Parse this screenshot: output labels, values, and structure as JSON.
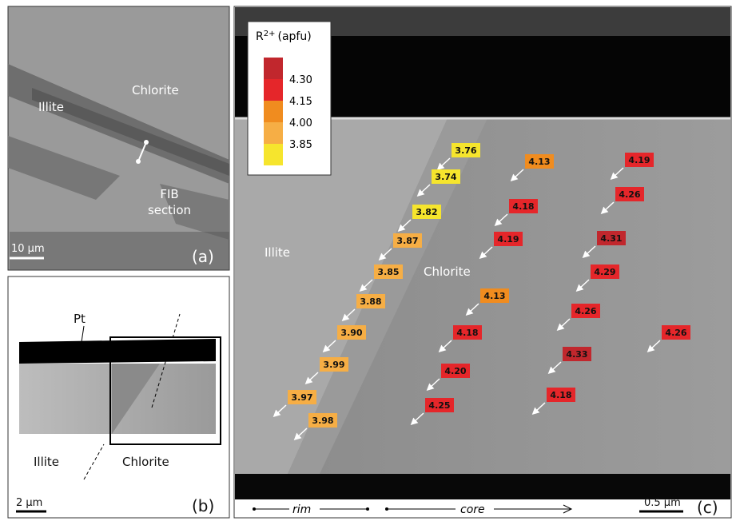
{
  "panel_a": {
    "illite": "Illite",
    "chlorite": "Chlorite",
    "fib": [
      "FIB",
      "section"
    ],
    "scale": "10 µm",
    "panel_label": "(a)"
  },
  "panel_b": {
    "pt": "Pt",
    "illite": "Illite",
    "chlorite": "Chlorite",
    "scale": "2 µm",
    "panel_label": "(b)"
  },
  "panel_c": {
    "legend": {
      "title": "R",
      "title_sup": "2+",
      "title_unit": "(apfu)",
      "ticks": [
        "4.30",
        "4.15",
        "4.00",
        "3.85"
      ],
      "colors": [
        "#c1272d",
        "#e5262a",
        "#f08c1f",
        "#f6ae45",
        "#f6e52d"
      ]
    },
    "illite": "Illite",
    "chlorite": "Chlorite",
    "rim": "rim",
    "core": "core",
    "scale": "0.5 µm",
    "panel_label": "(c)",
    "points": [
      "3.76",
      "3.74",
      "3.82",
      "3.87",
      "3.85",
      "3.88",
      "3.90",
      "3.99",
      "3.97",
      "3.98",
      "4.13",
      "4.18",
      "4.19",
      "4.13",
      "4.18",
      "4.20",
      "4.25",
      "4.19",
      "4.26",
      "4.31",
      "4.29",
      "4.26",
      "4.26",
      "4.33",
      "4.18"
    ]
  }
}
